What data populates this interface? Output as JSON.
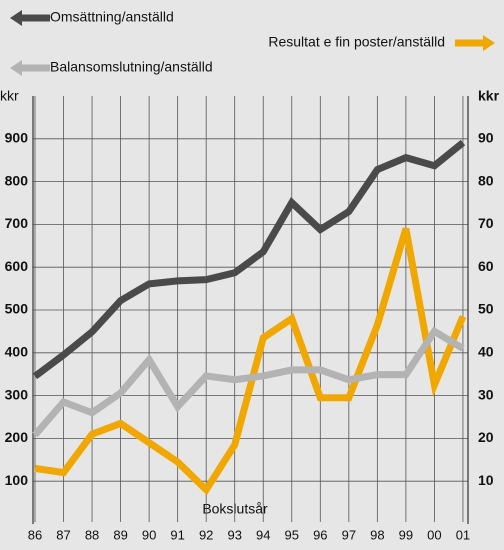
{
  "chart_data": {
    "type": "line",
    "categories": [
      "86",
      "87",
      "88",
      "89",
      "90",
      "91",
      "92",
      "93",
      "94",
      "95",
      "96",
      "97",
      "98",
      "99",
      "00",
      "01"
    ],
    "series": [
      {
        "name": "Omsättning/anställd",
        "color": "#4a4a4a",
        "values": [
          345,
          395,
          449,
          522,
          561,
          568,
          571,
          587,
          636,
          751,
          688,
          730,
          828,
          856,
          837,
          891
        ]
      },
      {
        "name": "Resultat e fin poster/anställd",
        "color": "#f0a800",
        "axis": "y2",
        "values": [
          13,
          12,
          21,
          23.5,
          19,
          14.5,
          8,
          18.5,
          43.5,
          48,
          29.5,
          29.5,
          46.5,
          69,
          32.5,
          48.5
        ]
      },
      {
        "name": "Balansomslutning/anställd",
        "color": "#b3b3b3",
        "values": [
          208,
          285,
          260,
          306,
          384,
          274,
          346,
          337,
          346,
          360,
          360,
          337,
          349,
          349,
          450,
          410
        ]
      }
    ],
    "ylabel": "kkr",
    "y2label": "kkr",
    "xlabel": "Bokslutsår",
    "ylim": [
      0,
      1000
    ],
    "yticks": [
      100,
      200,
      300,
      400,
      500,
      600,
      700,
      800,
      900
    ],
    "y2lim": [
      0,
      100
    ],
    "y2ticks": [
      10,
      20,
      30,
      40,
      50,
      60,
      70,
      80,
      90
    ],
    "y2color": "#f0a800",
    "grid": true
  }
}
